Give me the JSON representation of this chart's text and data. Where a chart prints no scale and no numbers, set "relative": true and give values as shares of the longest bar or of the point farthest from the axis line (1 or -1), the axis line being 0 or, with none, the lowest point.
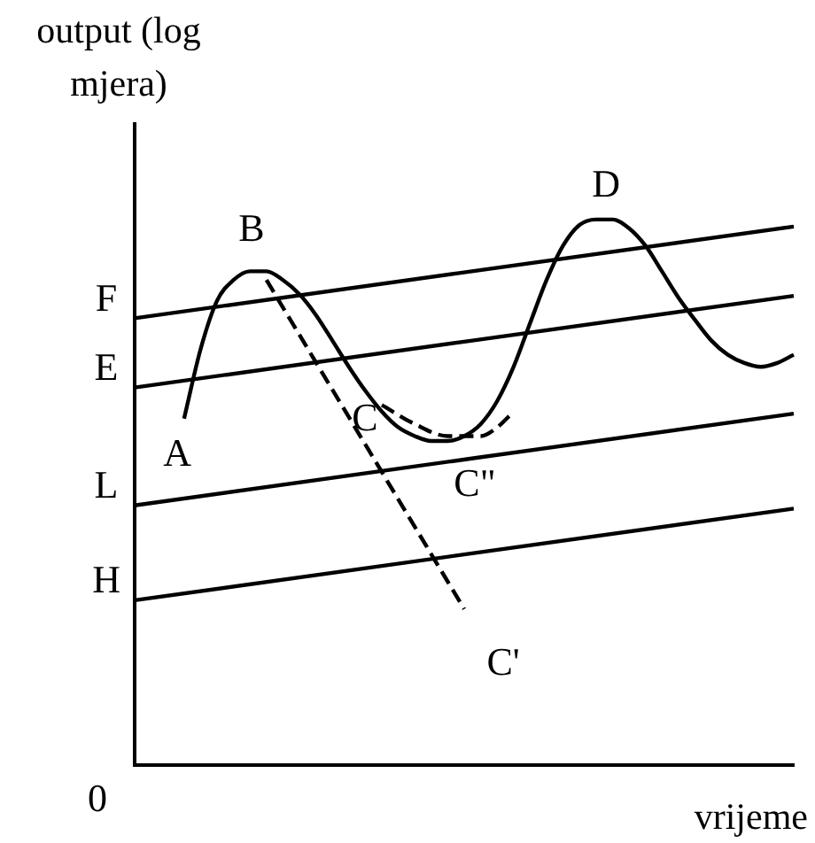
{
  "chart_data": {
    "type": "line",
    "relative": true,
    "xlabel": "vrijeme",
    "ylabel": "output (log mjera)",
    "marker": "none",
    "legend": false,
    "categories": [
      null,
      null,
      null,
      null,
      null,
      null,
      null,
      null,
      null,
      null,
      null,
      null,
      null,
      null,
      null,
      null,
      null,
      null,
      null,
      null,
      null,
      null,
      null,
      null,
      null,
      null,
      null,
      null,
      null,
      null,
      null,
      null,
      null,
      null,
      null,
      null,
      null,
      null,
      null,
      null,
      null
    ],
    "series": [
      {
        "name": "F",
        "color": "#000000",
        "line_style": "solid",
        "values": [
          0.819,
          null,
          null,
          null,
          null,
          null,
          null,
          null,
          null,
          null,
          null,
          null,
          null,
          null,
          null,
          null,
          null,
          null,
          null,
          null,
          null,
          null,
          null,
          null,
          null,
          null,
          null,
          null,
          null,
          null,
          null,
          null,
          null,
          null,
          null,
          null,
          null,
          null,
          null,
          null,
          0.987
        ]
      },
      {
        "name": "E",
        "color": "#000000",
        "line_style": "solid",
        "values": [
          0.692,
          null,
          null,
          null,
          null,
          null,
          null,
          null,
          null,
          null,
          null,
          null,
          null,
          null,
          null,
          null,
          null,
          null,
          null,
          null,
          null,
          null,
          null,
          null,
          null,
          null,
          null,
          null,
          null,
          null,
          null,
          null,
          null,
          null,
          null,
          null,
          null,
          null,
          null,
          null,
          0.86
        ]
      },
      {
        "name": "L",
        "color": "#000000",
        "line_style": "solid",
        "values": [
          0.476,
          null,
          null,
          null,
          null,
          null,
          null,
          null,
          null,
          null,
          null,
          null,
          null,
          null,
          null,
          null,
          null,
          null,
          null,
          null,
          null,
          null,
          null,
          null,
          null,
          null,
          null,
          null,
          null,
          null,
          null,
          null,
          null,
          null,
          null,
          null,
          null,
          null,
          null,
          null,
          0.644
        ]
      },
      {
        "name": "H",
        "color": "#000000",
        "line_style": "solid",
        "values": [
          0.302,
          null,
          null,
          null,
          null,
          null,
          null,
          null,
          null,
          null,
          null,
          null,
          null,
          null,
          null,
          null,
          null,
          null,
          null,
          null,
          null,
          null,
          null,
          null,
          null,
          null,
          null,
          null,
          null,
          null,
          null,
          null,
          null,
          null,
          null,
          null,
          null,
          null,
          null,
          null,
          0.47
        ]
      },
      {
        "color": "#000000",
        "line_style": "solid",
        "values": [
          null,
          null,
          null,
          0.635,
          0.762,
          0.851,
          0.889,
          0.905,
          0.905,
          0.889,
          0.863,
          0.825,
          0.778,
          0.73,
          0.686,
          0.648,
          0.619,
          0.603,
          0.594,
          0.594,
          0.603,
          0.625,
          0.667,
          0.73,
          0.81,
          0.889,
          0.952,
          0.99,
          1,
          1,
          0.984,
          0.952,
          0.905,
          0.857,
          0.816,
          0.778,
          0.752,
          0.737,
          0.73,
          0.737,
          0.752
        ]
      },
      {
        "color": "#000000",
        "line_style": "dashed",
        "values": [
          null,
          null,
          null,
          null,
          null,
          null,
          null,
          null,
          0.889,
          null,
          null,
          null,
          null,
          null,
          null,
          null,
          null,
          null,
          null,
          null,
          0.286,
          null,
          null,
          null,
          null,
          null,
          null,
          null,
          null,
          null,
          null,
          null,
          null,
          null,
          null,
          null,
          null,
          null,
          null,
          null,
          null
        ]
      },
      {
        "color": "#000000",
        "line_style": "dashed",
        "values": [
          null,
          null,
          null,
          null,
          null,
          null,
          null,
          null,
          null,
          null,
          null,
          null,
          null,
          null,
          null,
          0.66,
          null,
          0.625,
          null,
          0.603,
          null,
          0.603,
          0.619,
          0.648,
          null,
          null,
          null,
          null,
          null,
          null,
          null,
          null,
          null,
          null,
          null,
          null,
          null,
          null,
          null,
          null,
          null
        ]
      }
    ],
    "annotations": [
      "0",
      "A",
      "B",
      "C",
      "C\"",
      "C'",
      "D"
    ]
  }
}
